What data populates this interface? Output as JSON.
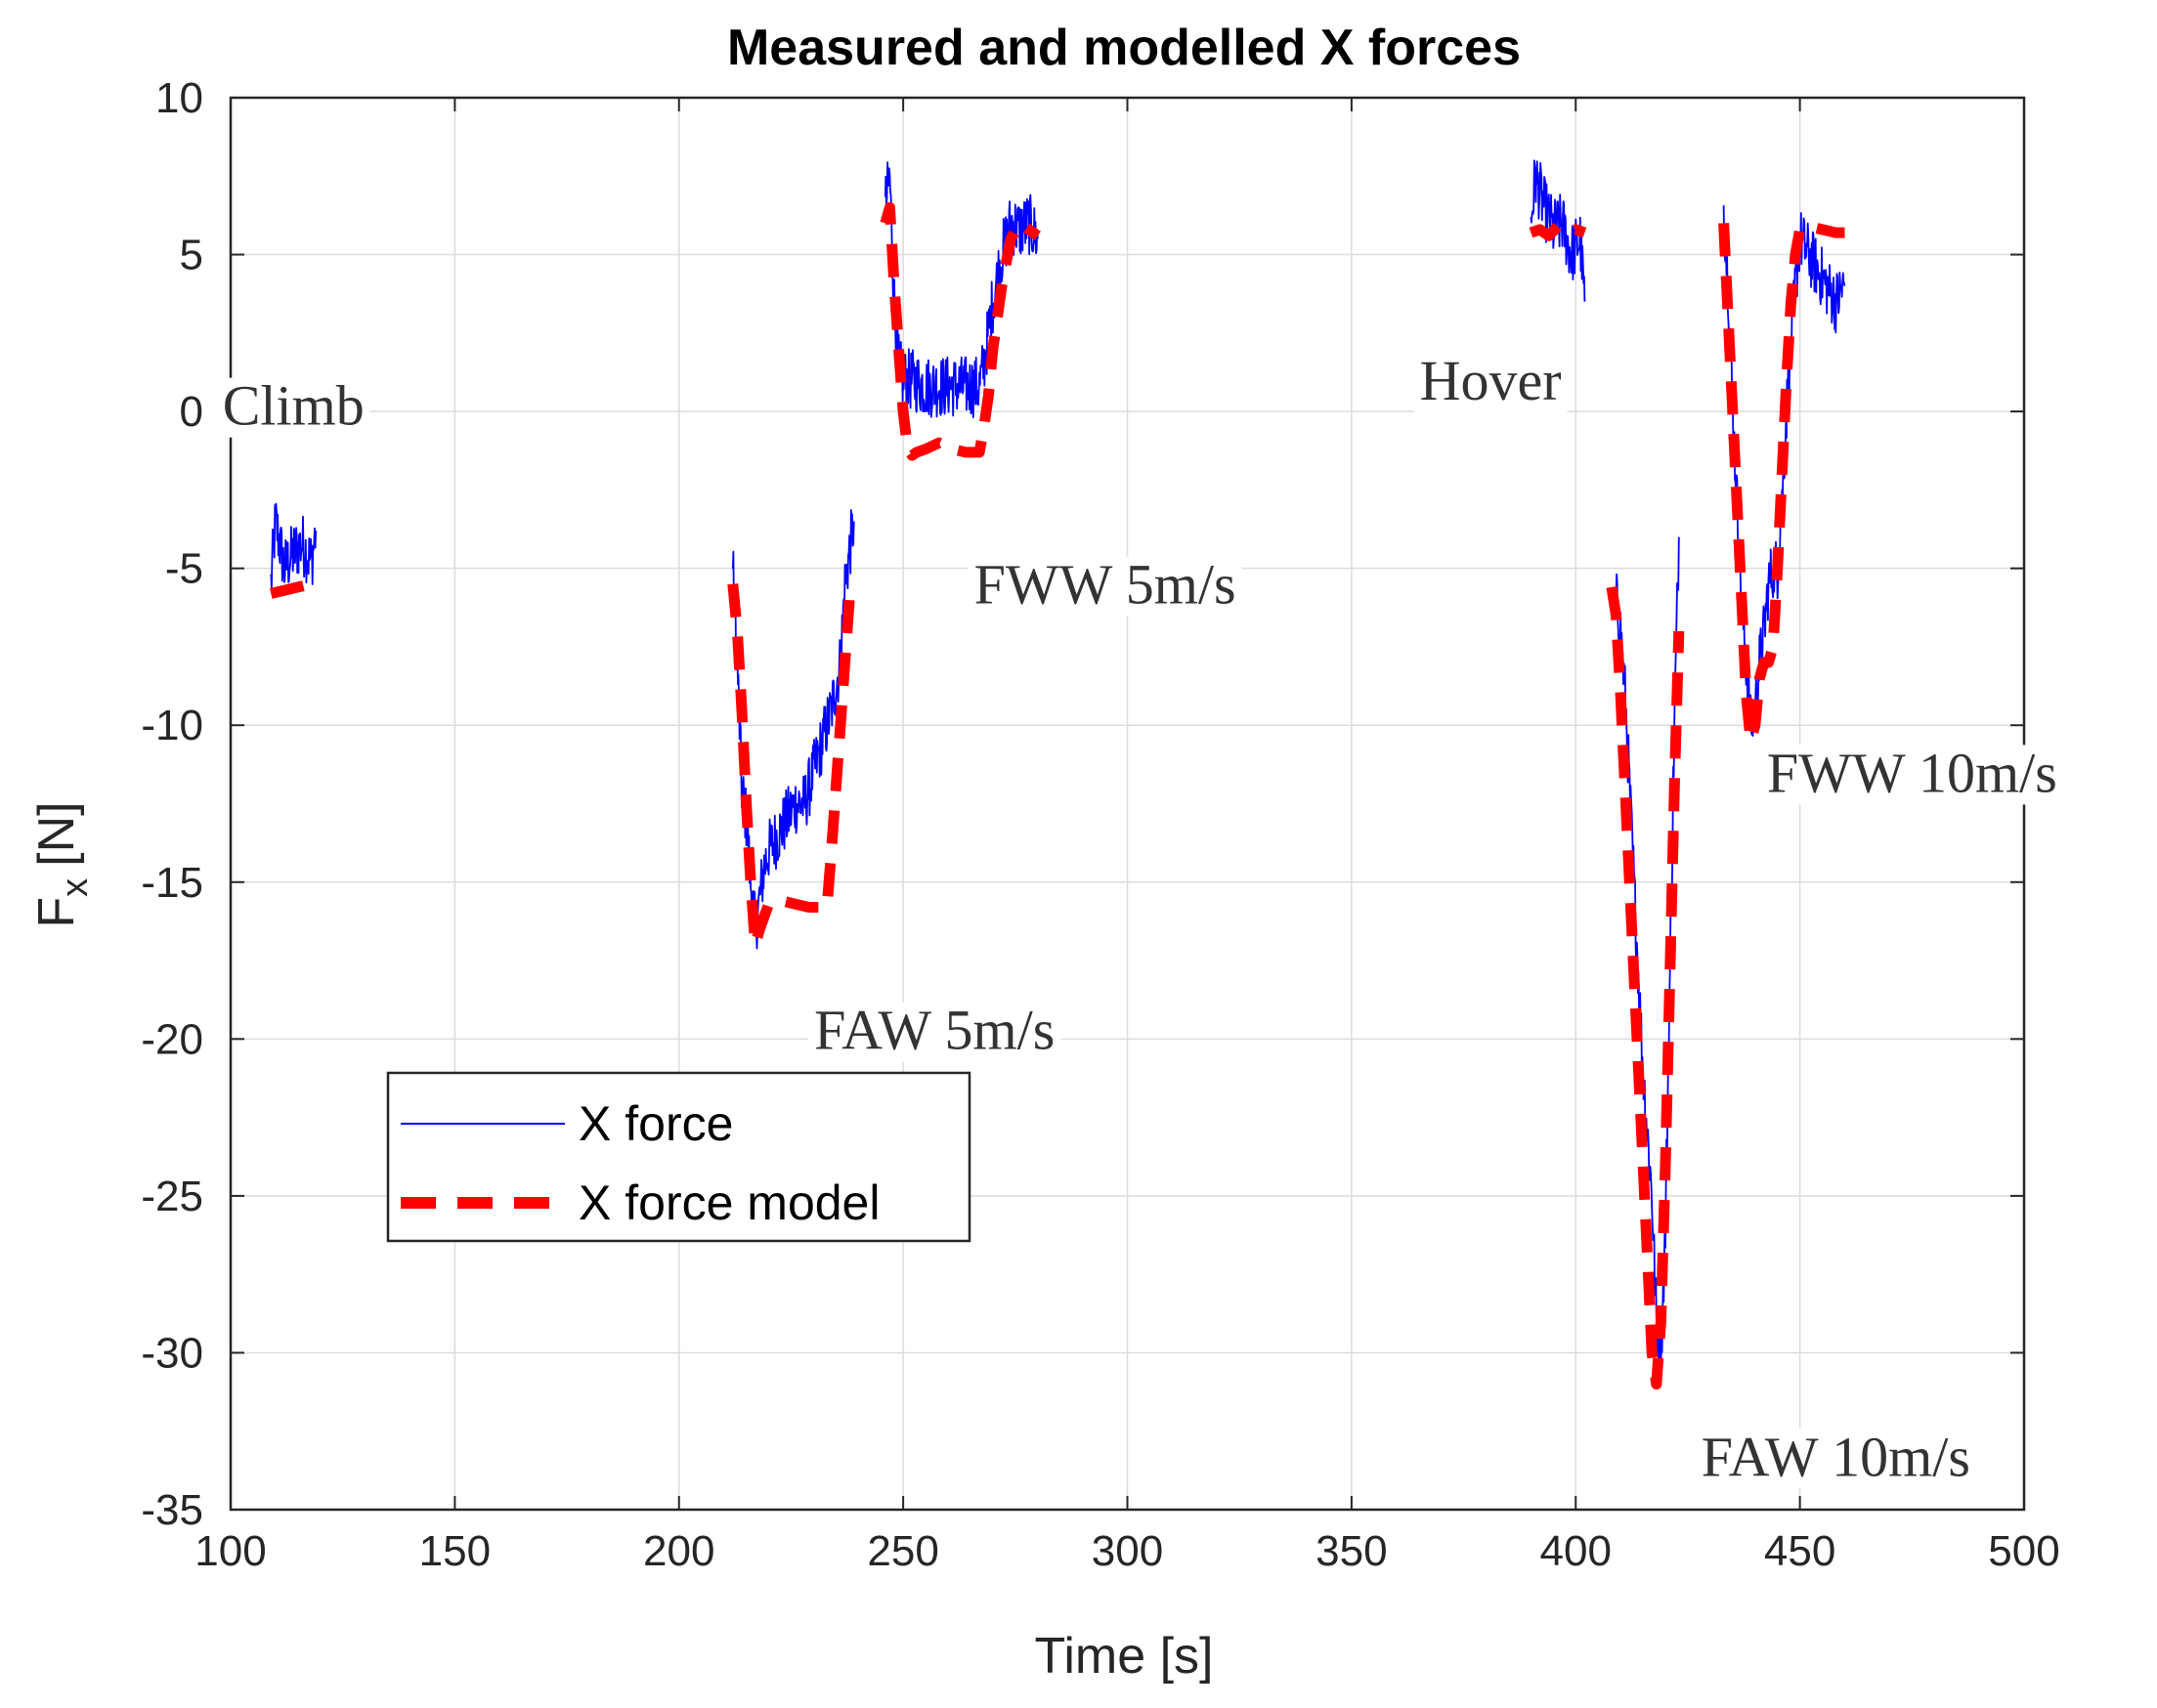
{
  "chart_data": {
    "type": "line",
    "title": "Measured and modelled X forces",
    "xlabel": "Time [s]",
    "ylabel_main": "F",
    "ylabel_sub": "x",
    "ylabel_unit": "[N]",
    "xlim": [
      100,
      500
    ],
    "ylim": [
      -35,
      10
    ],
    "xticks": [
      100,
      150,
      200,
      250,
      300,
      350,
      400,
      450,
      500
    ],
    "yticks": [
      10,
      5,
      0,
      -5,
      -10,
      -15,
      -20,
      -25,
      -30,
      -35
    ],
    "xtick_labels": [
      "100",
      "150",
      "200",
      "250",
      "300",
      "350",
      "400",
      "450",
      "500"
    ],
    "ytick_labels": [
      "10",
      "5",
      "0",
      "-5",
      "-10",
      "-15",
      "-20",
      "-25",
      "-30",
      "-35"
    ],
    "grid": true,
    "legend_position": "lower-left",
    "colors": {
      "measured": "#0000ff",
      "model": "#ff0000",
      "grid": "#dcdcdc",
      "axis": "#262626"
    },
    "legend": [
      "X force",
      "X force model"
    ],
    "series": [
      {
        "name": "X force",
        "style": "solid",
        "noise": 1.0,
        "segments": [
          {
            "x": [
              109,
              110,
              112,
              114,
              116,
              118,
              119
            ],
            "y": [
              -5.5,
              -3.5,
              -5.0,
              -4.5,
              -4.2,
              -4.8,
              -3.8
            ]
          },
          {
            "x": [
              212,
              213,
              214,
              215,
              216,
              217,
              218,
              219,
              220,
              222,
              224,
              226,
              228,
              230,
              232,
              234,
              236,
              237,
              238,
              239
            ],
            "y": [
              -5,
              -8,
              -12,
              -13,
              -15,
              -16.5,
              -15.5,
              -14.5,
              -14,
              -13.5,
              -13,
              -12.5,
              -12.5,
              -11.5,
              -10.5,
              -9.5,
              -8,
              -5.5,
              -4.5,
              -3.5
            ]
          },
          {
            "x": [
              246,
              247,
              248,
              249,
              250,
              252,
              255,
              258,
              261,
              264,
              267,
              268,
              270,
              272,
              274,
              276,
              278,
              280
            ],
            "y": [
              6.5,
              7.5,
              3.5,
              1.5,
              1,
              1,
              0.8,
              0.8,
              0.8,
              0.8,
              0.8,
              1.5,
              3.5,
              5,
              6,
              5.8,
              6,
              5.5
            ]
          },
          {
            "x": [
              390,
              391,
              393,
              395,
              397,
              399,
              401,
              402
            ],
            "y": [
              6,
              7.5,
              6.5,
              5.8,
              6,
              5,
              5.5,
              3.5
            ]
          },
          {
            "x": [
              409,
              410,
              411,
              412,
              413,
              414,
              415,
              416,
              417,
              418,
              419,
              420,
              421,
              422,
              423
            ],
            "y": [
              -6,
              -7,
              -9,
              -12,
              -15,
              -18,
              -21,
              -23,
              -25,
              -29,
              -30,
              -26,
              -18,
              -10,
              -4
            ]
          },
          {
            "x": [
              433,
              434,
              435,
              436,
              437,
              438,
              439,
              440,
              441,
              442,
              443,
              444,
              445,
              446,
              447,
              448,
              449,
              450,
              452,
              454,
              456,
              458,
              460
            ],
            "y": [
              6.5,
              4,
              0,
              -3,
              -6,
              -8,
              -10,
              -9.5,
              -8,
              -7,
              -5.5,
              -5,
              -5,
              -3,
              0,
              2,
              4,
              5.5,
              5,
              4.5,
              4,
              3.5,
              4
            ]
          }
        ]
      },
      {
        "name": "X force model",
        "style": "dashed",
        "segments": [
          {
            "x": [
              109,
              112,
              115,
              118,
              119
            ],
            "y": [
              -5.8,
              -5.7,
              -5.6,
              -5.5,
              -5.5
            ]
          },
          {
            "x": [
              212,
              213,
              214,
              215,
              216,
              217,
              218,
              220,
              223,
              226,
              229,
              232,
              233,
              234,
              235,
              236,
              237,
              238
            ],
            "y": [
              -5.5,
              -7,
              -9.5,
              -12.5,
              -15,
              -17,
              -16.5,
              -15.7,
              -15.6,
              -15.7,
              -15.8,
              -15.8,
              -15.8,
              -14,
              -12,
              -10,
              -8,
              -6
            ]
          },
          {
            "x": [
              246,
              247,
              248,
              249,
              250,
              251,
              252,
              253,
              255,
              258,
              261,
              264,
              267,
              268,
              269,
              270,
              272,
              274,
              276,
              278,
              280
            ],
            "y": [
              6,
              6.5,
              4,
              2,
              0,
              -1.2,
              -1.4,
              -1.3,
              -1.2,
              -1,
              -1.2,
              -1.3,
              -1.3,
              -0.5,
              0.5,
              2,
              4,
              5.5,
              6,
              5.8,
              5.6
            ]
          },
          {
            "x": [
              390,
              392,
              394,
              396,
              398,
              400,
              402
            ],
            "y": [
              5.7,
              5.8,
              5.6,
              5.9,
              5.7,
              5.8,
              5.7
            ]
          },
          {
            "x": [
              408,
              409,
              410,
              411,
              412,
              413,
              414,
              415,
              416,
              417,
              418,
              419,
              420,
              421,
              422,
              423
            ],
            "y": [
              -5.6,
              -6.5,
              -9,
              -12,
              -15,
              -18,
              -21,
              -24,
              -27,
              -30,
              -31,
              -29,
              -24,
              -18,
              -12,
              -7
            ]
          },
          {
            "x": [
              433,
              434,
              435,
              436,
              437,
              438,
              439,
              440,
              441,
              442,
              443,
              444,
              445,
              446,
              447,
              448,
              449,
              450,
              452,
              455,
              458,
              460
            ],
            "y": [
              6,
              3,
              0,
              -3,
              -6,
              -9,
              -10.5,
              -10,
              -8.5,
              -8,
              -8,
              -7.5,
              -5,
              -2,
              1,
              3.5,
              5,
              5.8,
              5.9,
              5.8,
              5.7,
              5.7
            ]
          }
        ]
      }
    ],
    "annotations": [
      {
        "text": "Climb",
        "x": 114,
        "y": 0.2
      },
      {
        "text": "FWW 5m/s",
        "x": 295,
        "y": -5.5
      },
      {
        "text": "FAW 5m/s",
        "x": 257,
        "y": -19.7
      },
      {
        "text": "Hover",
        "x": 381,
        "y": 1
      },
      {
        "text": "FWW 10m/s",
        "x": 475,
        "y": -11.5
      },
      {
        "text": "FAW 10m/s",
        "x": 458,
        "y": -33.3
      }
    ]
  }
}
